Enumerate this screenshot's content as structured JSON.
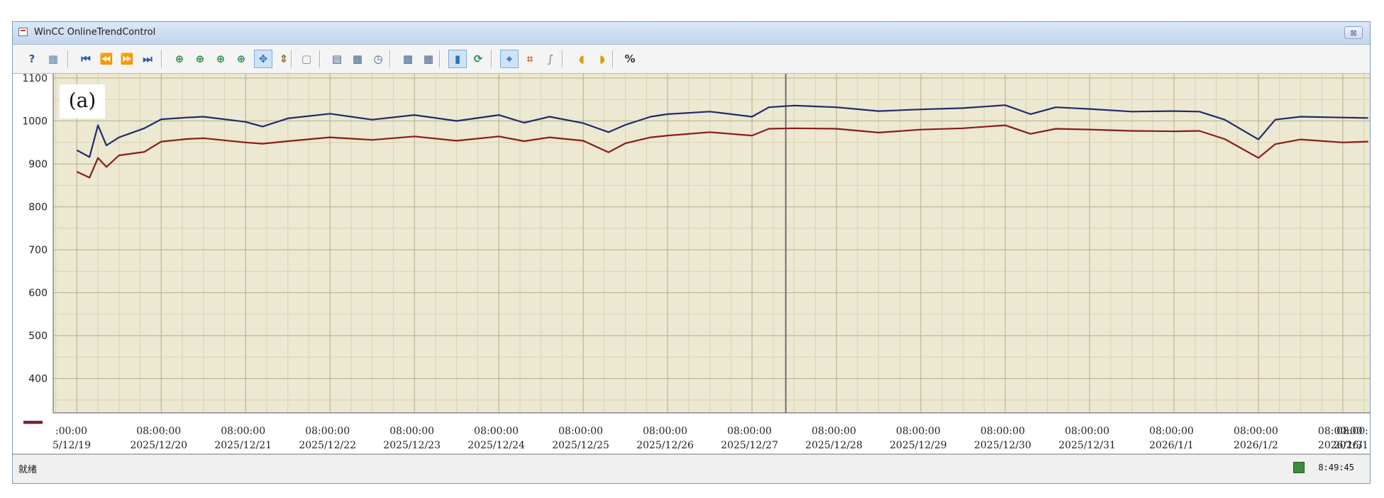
{
  "window": {
    "title": "WinCC OnlineTrendControl",
    "close_label": "⊠"
  },
  "toolbar": {
    "buttons": [
      {
        "icon": "help-icon",
        "glyph": "?",
        "color": "#2f5f9e"
      },
      {
        "icon": "config-dialog-icon",
        "glyph": "▦",
        "color": "#5a7fb3"
      },
      {
        "icon": "first-record-icon",
        "glyph": "⏮",
        "color": "#2b57b5"
      },
      {
        "icon": "previous-record-icon",
        "glyph": "⏪",
        "color": "#2b57b5"
      },
      {
        "icon": "next-record-icon",
        "glyph": "⏩",
        "color": "#2b57b5"
      },
      {
        "icon": "last-record-icon",
        "glyph": "⏭",
        "color": "#2b57b5"
      },
      {
        "icon": "zoom-area-icon",
        "glyph": "⊕",
        "color": "#2d8a52"
      },
      {
        "icon": "zoom-in-icon",
        "glyph": "⊕",
        "color": "#2d8a52"
      },
      {
        "icon": "zoom-time-axis-icon",
        "glyph": "⊕",
        "color": "#2d8a52"
      },
      {
        "icon": "zoom-value-axis-icon",
        "glyph": "⊕",
        "color": "#2d8a52"
      },
      {
        "icon": "move-trend-area-icon",
        "glyph": "✥",
        "color": "#2e6fc0"
      },
      {
        "icon": "move-axes-area-icon",
        "glyph": "⇕",
        "color": "#8a6a1a"
      },
      {
        "icon": "original-view-icon",
        "glyph": "▢",
        "color": "#8a8a8a"
      },
      {
        "icon": "select-data-connection-icon",
        "glyph": "▤",
        "color": "#3a5c8c"
      },
      {
        "icon": "select-trends-icon",
        "glyph": "▦",
        "color": "#3a5c8c"
      },
      {
        "icon": "select-time-range-icon",
        "glyph": "◷",
        "color": "#3a5c8c"
      },
      {
        "icon": "previous-trend-icon",
        "glyph": "▦",
        "color": "#3a5c8c"
      },
      {
        "icon": "next-trend-icon",
        "glyph": "▦",
        "color": "#3a5c8c"
      },
      {
        "icon": "stop-icon",
        "glyph": "▮",
        "color": "#2e6fc0"
      },
      {
        "icon": "start-stop-icon",
        "glyph": "⟳",
        "color": "#2d8a52"
      },
      {
        "icon": "ruler-icon",
        "glyph": "⌖",
        "color": "#2e6fc0"
      },
      {
        "icon": "statistics-area-icon",
        "glyph": "⌗",
        "color": "#c06020"
      },
      {
        "icon": "statistics-icon",
        "glyph": "∫",
        "color": "#a0a0a0"
      },
      {
        "icon": "archive-backup-icon",
        "glyph": "◖",
        "color": "#d8a010"
      },
      {
        "icon": "archive-restore-icon",
        "glyph": "◗",
        "color": "#d8a010"
      },
      {
        "icon": "relative-axis-icon",
        "glyph": "%",
        "color": "#333333"
      }
    ]
  },
  "chart_data": {
    "type": "line",
    "title": "",
    "annotation": "(a)",
    "ylim": [
      320,
      1110
    ],
    "y_ticks": [
      400,
      500,
      600,
      700,
      800,
      900,
      1000,
      1100
    ],
    "grid": true,
    "legend": "bottom-left",
    "x_tick_time": "08:00:00",
    "x_ticks_partial_start": {
      "time": ":00:00",
      "date": "5/12/19"
    },
    "x_ticks_partial_end": {
      "time": "08:00:",
      "date": "2026/1"
    },
    "x_ticks": [
      "2025/12/20",
      "2025/12/21",
      "2025/12/22",
      "2025/12/23",
      "2025/12/24",
      "2025/12/25",
      "2025/12/26",
      "2025/12/27",
      "2025/12/28",
      "2025/12/29",
      "2025/12/30",
      "2025/12/31",
      "2026/1/1",
      "2026/1/2",
      "2026/1/3"
    ],
    "series": [
      {
        "color": "#1f2a6b",
        "x": [
          0,
          0.15,
          0.25,
          0.35,
          0.5,
          0.8,
          1.0,
          1.3,
          1.5,
          2.0,
          2.2,
          2.5,
          3.0,
          3.5,
          4.0,
          4.5,
          5.0,
          5.3,
          5.6,
          6.0,
          6.3,
          6.5,
          6.8,
          7.0,
          7.5,
          8.0,
          8.2,
          8.5,
          9.0,
          9.5,
          10.0,
          10.5,
          11.0,
          11.3,
          11.6,
          12.0,
          12.5,
          13.0,
          13.3,
          13.6,
          14.0,
          14.2,
          14.5,
          15.0,
          15.3
        ],
        "values": [
          930,
          918,
          988,
          945,
          960,
          985,
          1002,
          1010,
          1008,
          1000,
          985,
          1008,
          1015,
          1005,
          1012,
          1002,
          1012,
          998,
          1008,
          997,
          972,
          993,
          1008,
          1018,
          1020,
          1012,
          1030,
          1038,
          1030,
          1025,
          1025,
          1032,
          1035,
          1018,
          1030,
          1030,
          1020,
          1025,
          1020,
          1005,
          955,
          1005,
          1008,
          1010,
          1005
        ]
      },
      {
        "color": "#8b1a1a",
        "x": [
          0,
          0.15,
          0.25,
          0.35,
          0.5,
          0.8,
          1.0,
          1.3,
          1.5,
          2.0,
          2.2,
          2.5,
          3.0,
          3.5,
          4.0,
          4.5,
          5.0,
          5.3,
          5.6,
          6.0,
          6.3,
          6.5,
          6.8,
          7.0,
          7.5,
          8.0,
          8.2,
          8.5,
          9.0,
          9.5,
          10.0,
          10.5,
          11.0,
          11.3,
          11.6,
          12.0,
          12.5,
          13.0,
          13.3,
          13.6,
          14.0,
          14.2,
          14.5,
          15.0,
          15.3
        ],
        "values": [
          880,
          870,
          912,
          895,
          918,
          930,
          950,
          960,
          958,
          952,
          945,
          955,
          960,
          958,
          962,
          956,
          962,
          955,
          960,
          956,
          925,
          950,
          960,
          968,
          972,
          968,
          980,
          985,
          980,
          975,
          978,
          985,
          988,
          972,
          980,
          982,
          975,
          978,
          975,
          960,
          912,
          948,
          955,
          952,
          950
        ]
      }
    ]
  },
  "status": {
    "text": "就绪",
    "time": "8:49:45"
  }
}
